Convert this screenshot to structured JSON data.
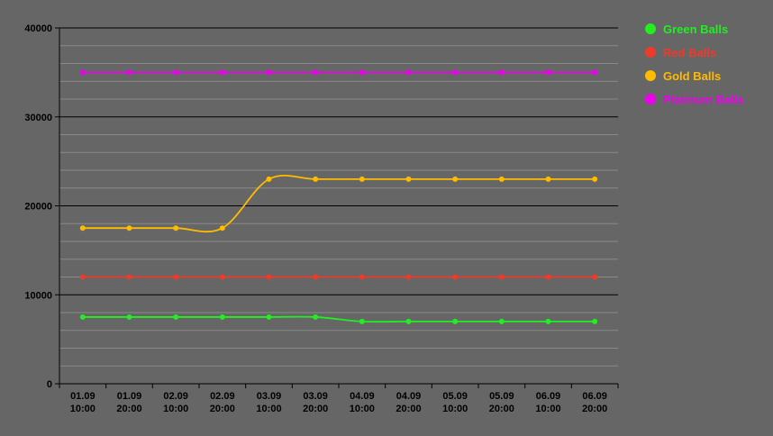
{
  "chart_data": {
    "type": "line",
    "title": "",
    "xlabel": "",
    "ylabel": "",
    "ylim": [
      0,
      40000
    ],
    "y_ticks": [
      "0",
      "10000",
      "20000",
      "30000",
      "40000"
    ],
    "grid": true,
    "legend_position": "top-right",
    "categories": [
      [
        "01.09",
        "10:00"
      ],
      [
        "01.09",
        "20:00"
      ],
      [
        "02.09",
        "10:00"
      ],
      [
        "02.09",
        "20:00"
      ],
      [
        "03.09",
        "10:00"
      ],
      [
        "03.09",
        "20:00"
      ],
      [
        "04.09",
        "10:00"
      ],
      [
        "04.09",
        "20:00"
      ],
      [
        "05.09",
        "10:00"
      ],
      [
        "05.09",
        "20:00"
      ],
      [
        "06.09",
        "10:00"
      ],
      [
        "06.09",
        "20:00"
      ]
    ],
    "series": [
      {
        "name": "Green Balls",
        "color": "#22ee22",
        "values": [
          7500,
          7500,
          7500,
          7500,
          7500,
          7500,
          7000,
          7000,
          7000,
          7000,
          7000,
          7000
        ]
      },
      {
        "name": "Red Balls",
        "color": "#ee3a2a",
        "values": [
          12000,
          12000,
          12000,
          12000,
          12000,
          12000,
          12000,
          12000,
          12000,
          12000,
          12000,
          12000
        ]
      },
      {
        "name": "Gold Balls",
        "color": "#ffbb00",
        "values": [
          17500,
          17500,
          17500,
          17500,
          23000,
          23000,
          23000,
          23000,
          23000,
          23000,
          23000,
          23000
        ]
      },
      {
        "name": "Platinum Balls",
        "color": "#ee00ee",
        "values": [
          35000,
          35000,
          35000,
          35000,
          35000,
          35000,
          35000,
          35000,
          35000,
          35000,
          35000,
          35000
        ]
      }
    ]
  }
}
